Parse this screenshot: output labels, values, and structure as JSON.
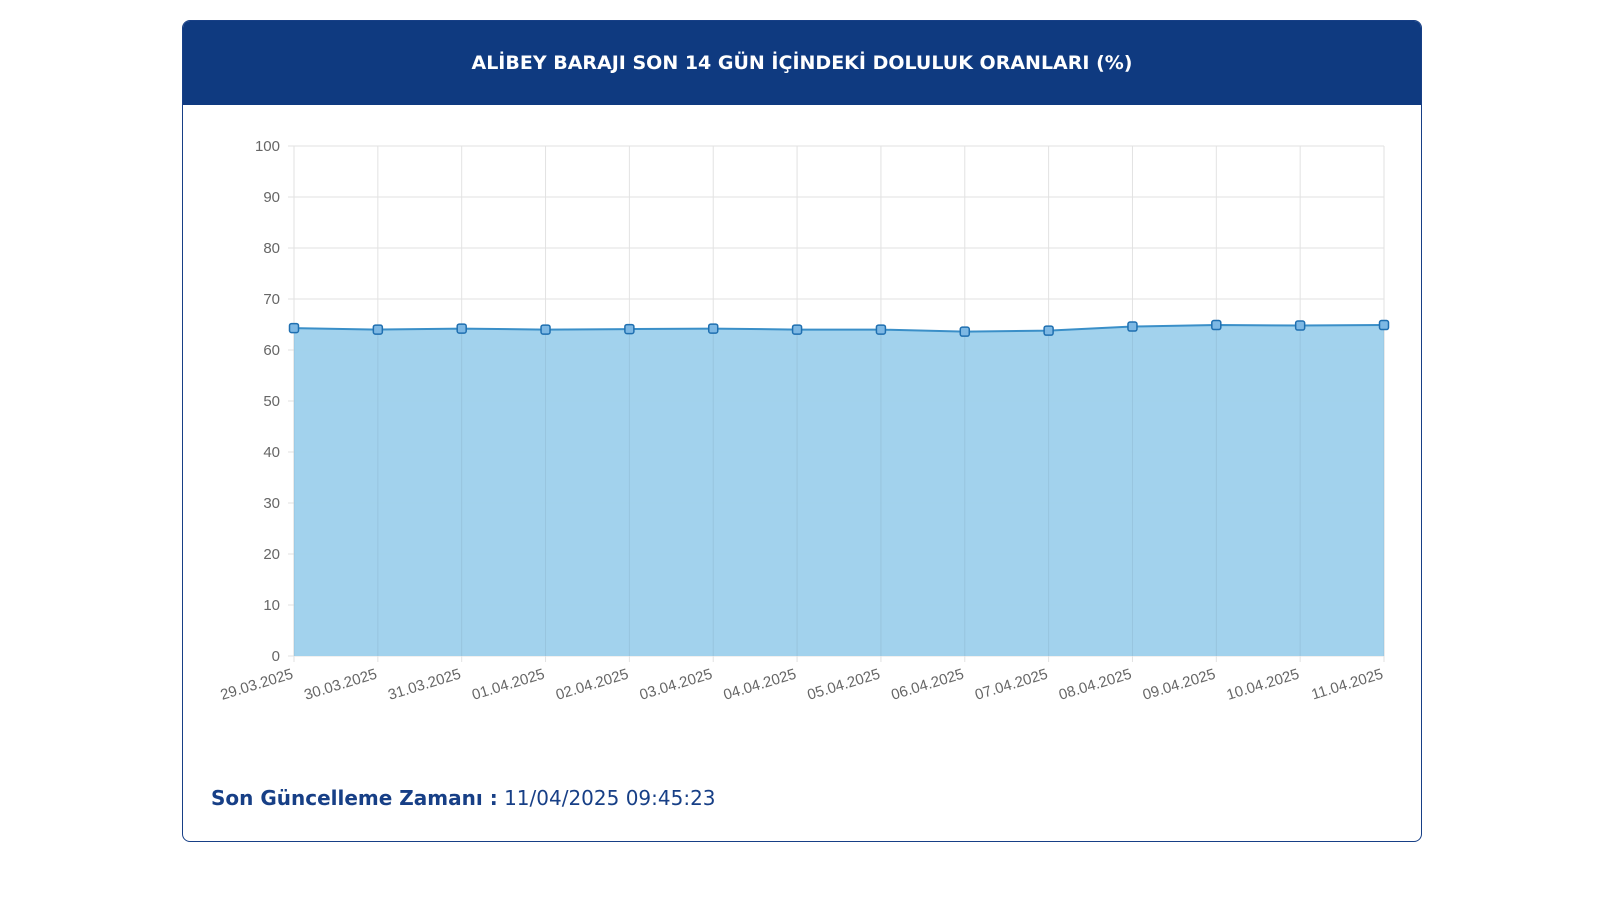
{
  "chart_data": {
    "type": "area",
    "title": "ALİBEY BARAJI SON 14 GÜN İÇİNDEKİ DOLULUK ORANLARI (%)",
    "categories": [
      "29.03.2025",
      "30.03.2025",
      "31.03.2025",
      "01.04.2025",
      "02.04.2025",
      "03.04.2025",
      "04.04.2025",
      "05.04.2025",
      "06.04.2025",
      "07.04.2025",
      "08.04.2025",
      "09.04.2025",
      "10.04.2025",
      "11.04.2025"
    ],
    "series": [
      {
        "color": "#3a8fc8",
        "fill": "#9dd0ec",
        "values": [
          64.3,
          64.0,
          64.2,
          64.0,
          64.1,
          64.2,
          64.0,
          64.0,
          63.6,
          63.8,
          64.6,
          64.9,
          64.8,
          64.9
        ]
      }
    ],
    "ylim": [
      0,
      100
    ],
    "yticks": [
      0,
      10,
      20,
      30,
      40,
      50,
      60,
      70,
      80,
      90,
      100
    ],
    "grid": true
  },
  "footer": {
    "label": "Son Güncelleme Zamanı :",
    "value": "11/04/2025 09:45:23"
  }
}
